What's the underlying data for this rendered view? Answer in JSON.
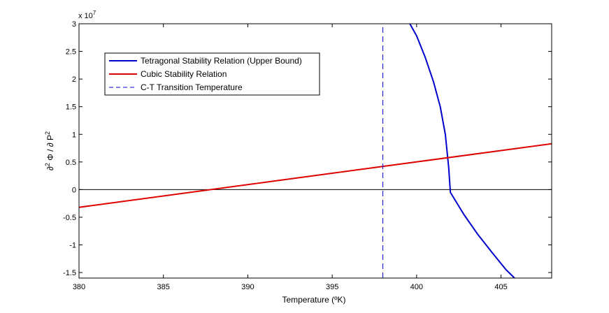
{
  "chart_data": {
    "type": "line",
    "title": "",
    "xlabel": "Temperature (ºK)",
    "ylabel": "∂² Φ / ∂ P²",
    "ylabel_parts": {
      "a": "∂",
      "a_sup": "2",
      "b": " Φ / ∂ P",
      "b_sup": "2"
    },
    "y_multiplier": "x 10",
    "y_multiplier_exp": "7",
    "xlim": [
      380,
      408
    ],
    "ylim": [
      -1.6,
      3.0
    ],
    "xticks": [
      380,
      385,
      390,
      395,
      400,
      405
    ],
    "xtick_labels": [
      "380",
      "385",
      "390",
      "395",
      "400",
      "405"
    ],
    "yticks": [
      -1.5,
      -1,
      -0.5,
      0,
      0.5,
      1,
      1.5,
      2,
      2.5,
      3
    ],
    "ytick_labels": [
      "-1.5",
      "-1",
      "-0.5",
      "0",
      "0.5",
      "1",
      "1.5",
      "2",
      "2.5",
      "3"
    ],
    "grid": false,
    "legend_position": "top-left",
    "series": [
      {
        "name": "Tetragonal Stability Relation (Upper Bound)",
        "color": "#0000cc",
        "style": "solid",
        "x": [
          399.6,
          400.0,
          400.5,
          401.0,
          401.4,
          401.7,
          401.9,
          402.0,
          402.2,
          402.8,
          403.6,
          404.5,
          405.3,
          405.8
        ],
        "y": [
          3.0,
          2.78,
          2.4,
          1.95,
          1.5,
          1.0,
          0.4,
          -0.05,
          -0.15,
          -0.45,
          -0.8,
          -1.15,
          -1.45,
          -1.6
        ]
      },
      {
        "name": "Cubic Stability Relation",
        "color": "#dd0000",
        "style": "solid",
        "x": [
          380,
          408
        ],
        "y": [
          -0.32,
          0.83
        ]
      },
      {
        "name": "C-T  Transition Temperature",
        "color": "#0000cc",
        "style": "dashed",
        "x": [
          398,
          398
        ],
        "y": [
          -1.6,
          3.0
        ]
      }
    ],
    "reference_lines": [
      {
        "axis": "y",
        "value": 0,
        "color": "#000000"
      }
    ]
  }
}
